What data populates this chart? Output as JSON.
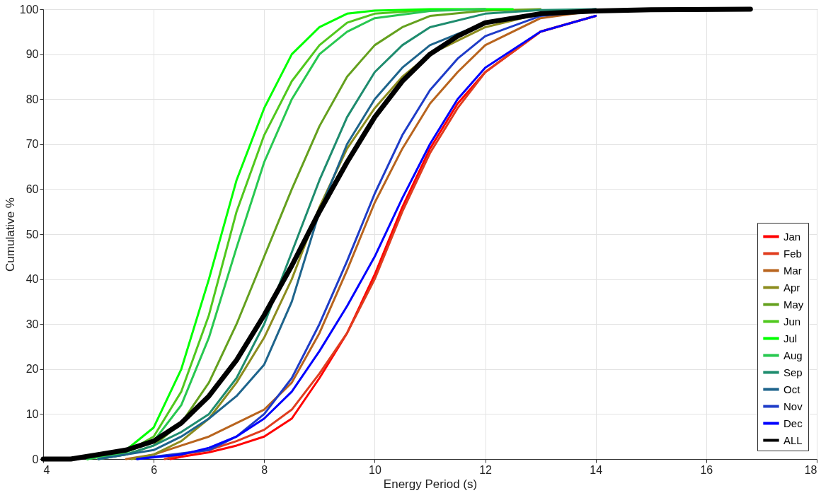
{
  "chart_data": {
    "type": "line",
    "xlabel": "Energy Period (s)",
    "ylabel": "Cumulative %",
    "xlim": [
      4,
      18
    ],
    "xticks": [
      4,
      6,
      8,
      10,
      12,
      14,
      16,
      18
    ],
    "ylim": [
      0,
      100
    ],
    "yticks": [
      0,
      10,
      20,
      30,
      40,
      50,
      60,
      70,
      80,
      90,
      100
    ],
    "grid": true,
    "legend": "bottom right",
    "line_style": "solid",
    "marker": "none",
    "series": [
      {
        "name": "Jan",
        "color": "#ff0000",
        "x": [
          6.3,
          6.5,
          7,
          7.5,
          8,
          8.5,
          9,
          9.5,
          10,
          10.5,
          11,
          11.5,
          12,
          13,
          14
        ],
        "values": [
          0,
          0.5,
          1.5,
          3,
          5,
          9,
          18,
          28,
          41,
          56,
          69,
          79,
          86,
          95,
          98.5
        ]
      },
      {
        "name": "Feb",
        "color": "#e03c1e",
        "x": [
          6.2,
          6.5,
          7,
          7.5,
          8,
          8.5,
          9,
          9.5,
          10,
          10.5,
          11,
          11.5,
          12,
          13,
          14
        ],
        "values": [
          0,
          1,
          2,
          4,
          6.5,
          11,
          19,
          28,
          40,
          55,
          68,
          78,
          86,
          95,
          98.5
        ]
      },
      {
        "name": "Mar",
        "color": "#b8641e",
        "x": [
          5.5,
          6,
          6.5,
          7,
          7.5,
          8,
          8.5,
          9,
          9.5,
          10,
          10.5,
          11,
          11.5,
          12,
          13,
          14
        ],
        "values": [
          0,
          1,
          3,
          5,
          8,
          11,
          17,
          28,
          42,
          57,
          69,
          79,
          86,
          92,
          98,
          99.7
        ]
      },
      {
        "name": "Apr",
        "color": "#8c8c1e",
        "x": [
          5.6,
          6,
          6.5,
          7,
          7.5,
          8,
          8.5,
          9,
          9.5,
          10,
          10.5,
          11,
          12,
          13,
          14
        ],
        "values": [
          0,
          1,
          4,
          9,
          17,
          27,
          40,
          56,
          69,
          78,
          85,
          90,
          96,
          99,
          100
        ]
      },
      {
        "name": "May",
        "color": "#64a01e",
        "x": [
          5,
          5.5,
          6,
          6.5,
          7,
          7.5,
          8,
          8.5,
          9,
          9.5,
          10,
          10.5,
          11,
          12,
          13
        ],
        "values": [
          0,
          1,
          3,
          8,
          17,
          30,
          45,
          60,
          74,
          85,
          92,
          96,
          98.5,
          99.7,
          100
        ]
      },
      {
        "name": "Jun",
        "color": "#50c81e",
        "x": [
          4.8,
          5.5,
          6,
          6.5,
          7,
          7.5,
          8,
          8.5,
          9,
          9.5,
          10,
          11,
          12
        ],
        "values": [
          0,
          1.5,
          5,
          15,
          32,
          55,
          72,
          84,
          92,
          97,
          99,
          99.8,
          100
        ]
      },
      {
        "name": "Jul",
        "color": "#00ff00",
        "x": [
          4.8,
          5.5,
          6,
          6.5,
          7,
          7.5,
          8,
          8.5,
          9,
          9.5,
          10,
          11,
          12.5
        ],
        "values": [
          0,
          2,
          7,
          20,
          40,
          62,
          78,
          90,
          96,
          99,
          99.7,
          100,
          100
        ]
      },
      {
        "name": "Aug",
        "color": "#28c850",
        "x": [
          4.8,
          5.5,
          6,
          6.5,
          7,
          7.5,
          8,
          8.5,
          9,
          9.5,
          10,
          11,
          12
        ],
        "values": [
          0,
          1.5,
          4,
          12,
          27,
          47,
          66,
          80,
          90,
          95,
          98,
          99.6,
          100
        ]
      },
      {
        "name": "Sep",
        "color": "#1e8c6e",
        "x": [
          5,
          5.5,
          6,
          6.5,
          7,
          7.5,
          8,
          8.5,
          9,
          9.5,
          10,
          10.5,
          11,
          12,
          13,
          14
        ],
        "values": [
          0,
          1,
          3,
          6,
          10,
          18,
          30,
          46,
          62,
          76,
          86,
          92,
          96,
          99,
          99.8,
          100
        ]
      },
      {
        "name": "Oct",
        "color": "#1e648c",
        "x": [
          5,
          5.5,
          6,
          6.5,
          7,
          7.5,
          8,
          8.5,
          9,
          9.5,
          10,
          10.5,
          11,
          12,
          13,
          14
        ],
        "values": [
          0,
          1,
          2,
          5,
          9,
          14,
          21,
          35,
          55,
          70,
          80,
          87,
          92,
          97,
          99,
          100
        ]
      },
      {
        "name": "Nov",
        "color": "#1e3cc8",
        "x": [
          5.7,
          6,
          7,
          7.5,
          8,
          8.5,
          9,
          9.5,
          10,
          10.5,
          11,
          11.5,
          12,
          13,
          14
        ],
        "values": [
          0,
          0.5,
          2,
          5,
          10,
          18,
          30,
          44,
          59,
          72,
          82,
          89,
          94,
          98.5,
          99.7
        ]
      },
      {
        "name": "Dec",
        "color": "#0000ff",
        "x": [
          5.7,
          6.5,
          7,
          7.5,
          8,
          8.5,
          9,
          9.5,
          10,
          10.5,
          11,
          11.5,
          12,
          13,
          14
        ],
        "values": [
          0,
          1,
          2.5,
          5,
          9,
          15,
          24,
          34,
          45,
          58,
          70,
          80,
          87,
          95,
          98.5
        ]
      },
      {
        "name": "ALL",
        "color": "#000000",
        "x": [
          4,
          4.5,
          5,
          5.5,
          6,
          6.5,
          7,
          7.5,
          8,
          8.5,
          9,
          9.5,
          10,
          10.5,
          11,
          11.5,
          12,
          13,
          14,
          15,
          16.8
        ],
        "values": [
          0,
          0,
          1,
          2,
          4,
          8,
          14,
          22,
          32,
          43,
          55,
          66,
          76,
          84,
          90,
          94,
          97,
          99,
          99.6,
          99.9,
          100
        ]
      }
    ]
  }
}
